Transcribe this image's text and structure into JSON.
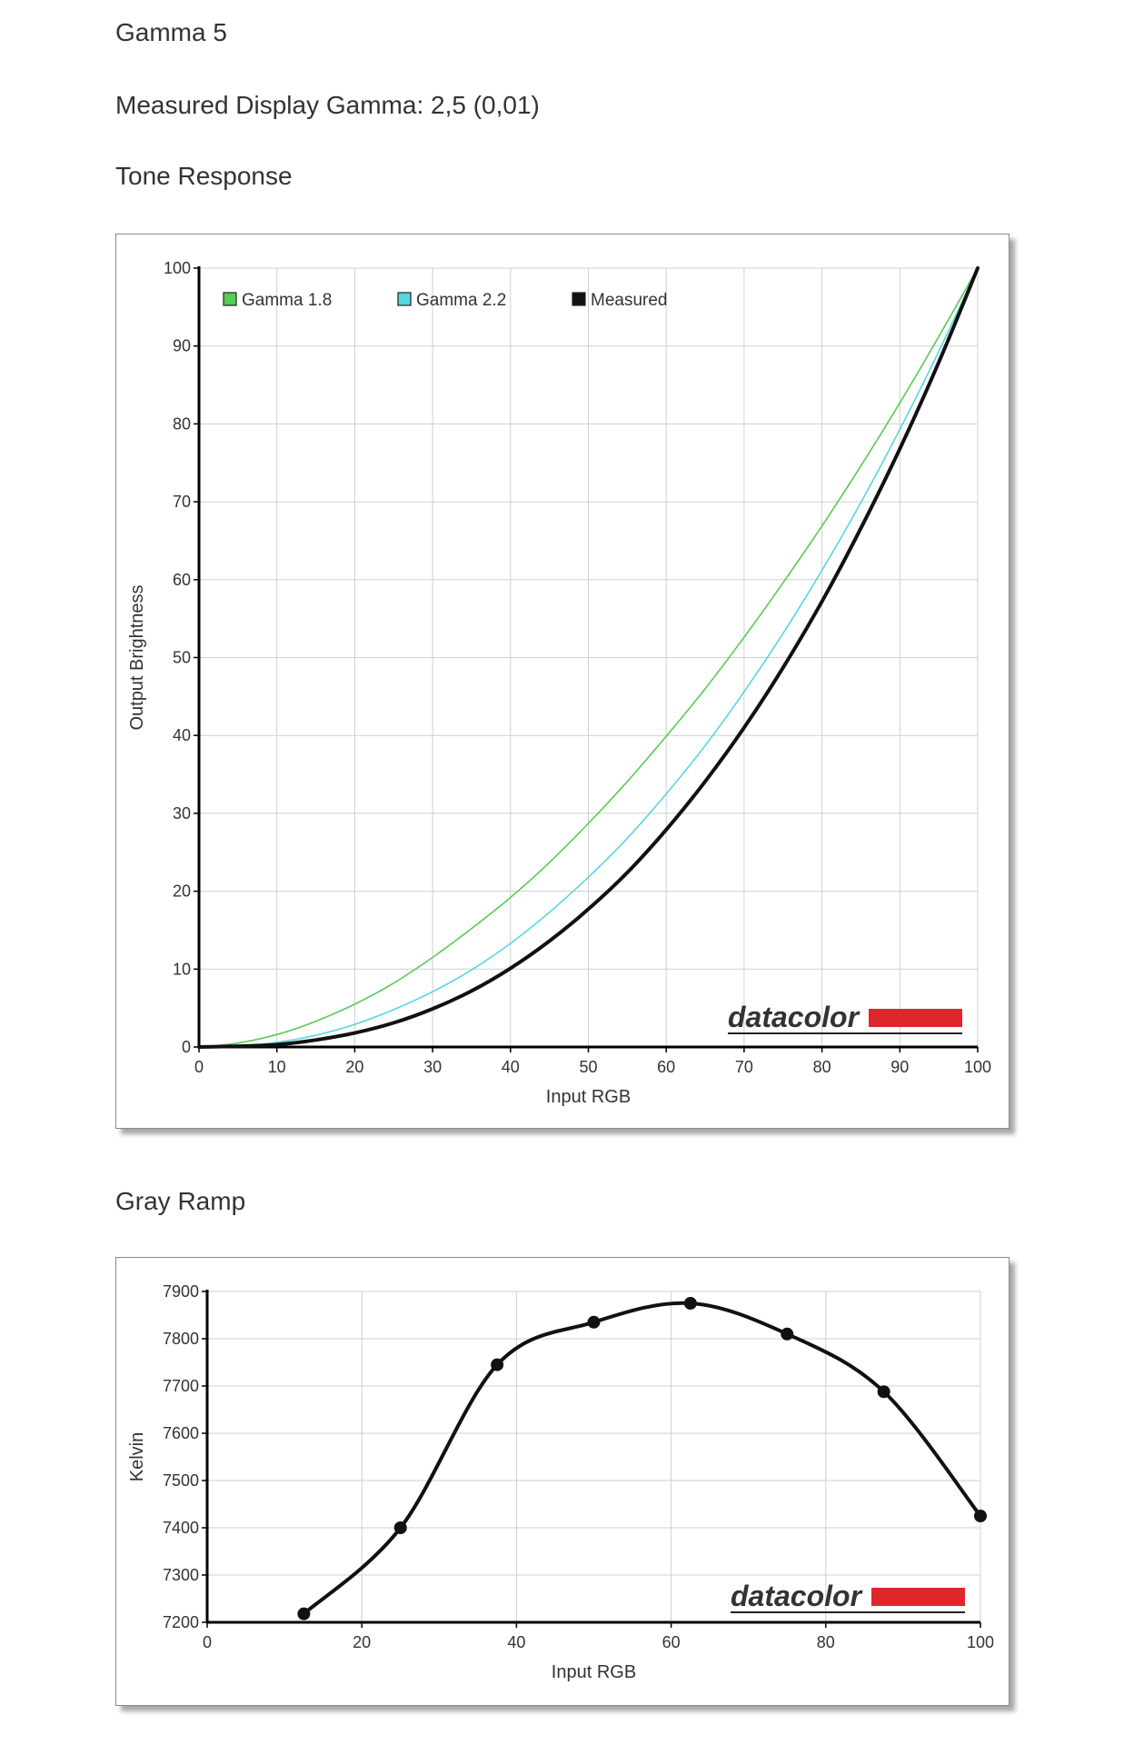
{
  "headings": {
    "title": "Gamma 5",
    "measured_gamma": "Measured Display Gamma: 2,5 (0,01)",
    "tone_section": "Tone Response",
    "gray_section": "Gray Ramp"
  },
  "watermark": {
    "text": "datacolor",
    "brand_color": "#e0262d"
  },
  "colors": {
    "gamma18": "#55cc55",
    "gamma22": "#55d6e0",
    "measured": "#111111",
    "grid": "#cfcfcf"
  },
  "chart_data": [
    {
      "type": "line",
      "title": "Tone Response",
      "xlabel": "Input RGB",
      "ylabel": "Output Brightness",
      "xlim": [
        0,
        100
      ],
      "ylim": [
        0,
        100
      ],
      "xticks": [
        0,
        10,
        20,
        30,
        40,
        50,
        60,
        70,
        80,
        90,
        100
      ],
      "yticks": [
        0,
        10,
        20,
        30,
        40,
        50,
        60,
        70,
        80,
        90,
        100
      ],
      "grid": true,
      "legend_position": "top-left",
      "x": [
        0,
        5,
        10,
        15,
        20,
        25,
        30,
        35,
        40,
        45,
        50,
        55,
        60,
        65,
        70,
        75,
        80,
        85,
        90,
        95,
        100
      ],
      "series": [
        {
          "name": "Gamma 1.8",
          "color": "#55cc55",
          "values": [
            0,
            0.5,
            1.6,
            3.3,
            5.5,
            8.2,
            11.5,
            15.2,
            19.2,
            23.7,
            28.7,
            34.1,
            39.9,
            46.0,
            52.6,
            59.6,
            66.9,
            74.6,
            82.7,
            91.2,
            100
          ]
        },
        {
          "name": "Gamma 2.2",
          "color": "#55d6e0",
          "values": [
            0,
            0.1,
            0.6,
            1.5,
            2.9,
            4.8,
            7.1,
            9.9,
            13.3,
            17.3,
            21.8,
            26.8,
            32.5,
            38.7,
            45.6,
            53.1,
            61.2,
            69.9,
            79.3,
            89.3,
            100
          ]
        },
        {
          "name": "Measured",
          "color": "#111111",
          "values": [
            0,
            0.1,
            0.3,
            0.9,
            1.8,
            3.1,
            4.9,
            7.2,
            10.1,
            13.6,
            17.7,
            22.4,
            27.9,
            34.1,
            41.0,
            48.7,
            57.2,
            66.6,
            76.8,
            87.9,
            100
          ]
        }
      ]
    },
    {
      "type": "line",
      "title": "Gray Ramp",
      "xlabel": "Input RGB",
      "ylabel": "Kelvin",
      "xlim": [
        0,
        100
      ],
      "ylim": [
        7200,
        7900
      ],
      "xticks": [
        0,
        20,
        40,
        60,
        80,
        100
      ],
      "yticks": [
        7200,
        7300,
        7400,
        7500,
        7600,
        7700,
        7800,
        7900
      ],
      "grid": true,
      "x": [
        12.5,
        25,
        37.5,
        50,
        62.5,
        75,
        87.5,
        100
      ],
      "series": [
        {
          "color": "#111111",
          "values": [
            7218,
            7400,
            7745,
            7835,
            7875,
            7810,
            7688,
            7425
          ]
        }
      ]
    }
  ]
}
